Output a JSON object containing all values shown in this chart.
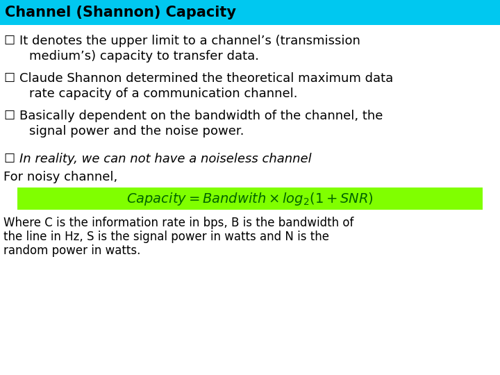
{
  "title": "Channel (Shannon) Capacity",
  "title_bg_color": "#00C8F0",
  "title_text_color": "#000000",
  "bg_color": "#FFFFFF",
  "bullet1_line1": "It denotes the upper limit to a channel’s (transmission",
  "bullet1_line2": "medium’s) capacity to transfer data.",
  "bullet2_line1": "Claude Shannon determined the theoretical maximum data",
  "bullet2_line2": "rate capacity of a communication channel.",
  "bullet3_line1": "Basically dependent on the bandwidth of the channel, the",
  "bullet3_line2": "signal power and the noise power.",
  "italic_text": "In reality, we can not have a noiseless channel",
  "noisy_label": "For noisy channel,",
  "formula_bg": "#80FF00",
  "footnote_line1": "Where C is the information rate in bps, B is the bandwidth of",
  "footnote_line2": "the line in Hz, S is the signal power in watts and N is the",
  "footnote_line3": "random power in watts.",
  "title_fs": 15,
  "body_fs": 13,
  "italic_fs": 13,
  "formula_fs": 13,
  "footnote_fs": 12
}
